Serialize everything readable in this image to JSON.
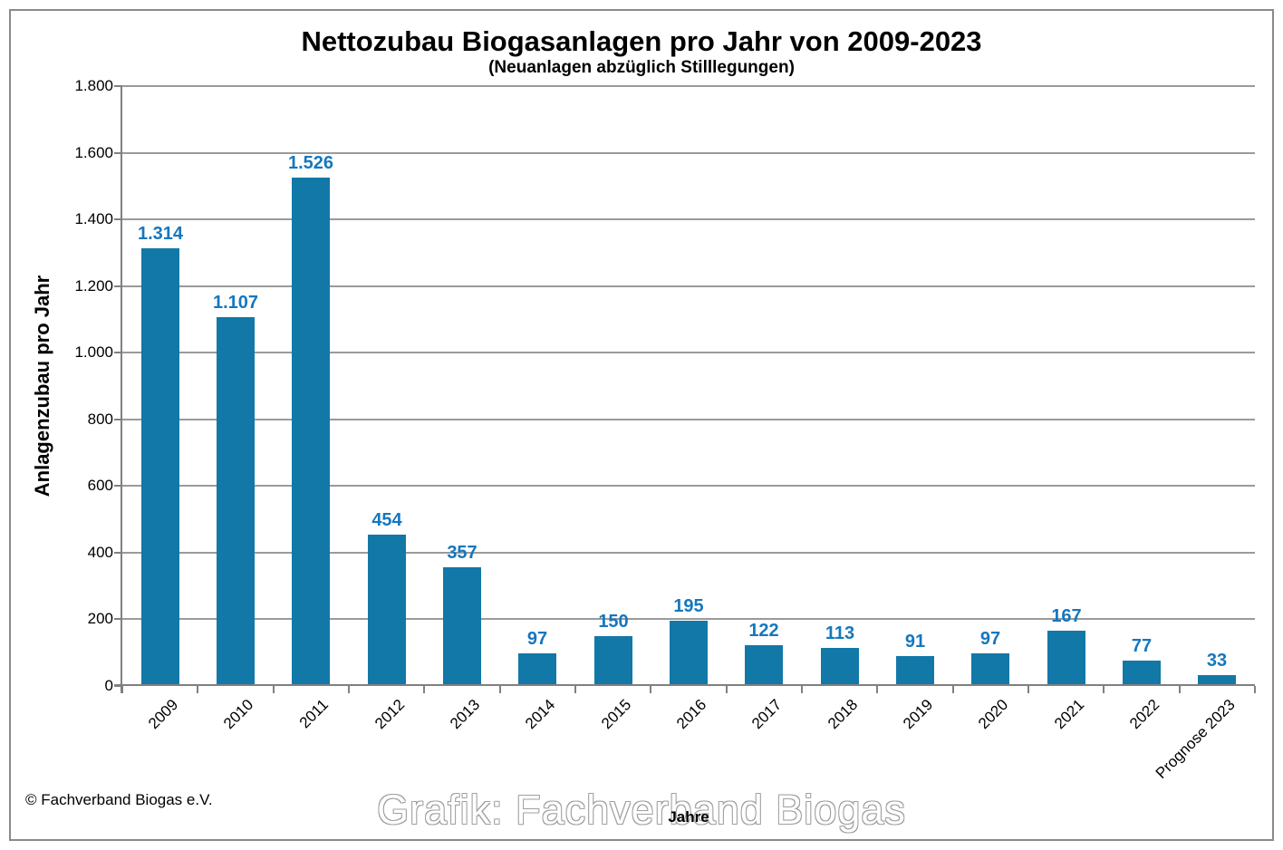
{
  "chart_data": {
    "type": "bar",
    "title": "Nettozubau Biogasanlagen pro Jahr von 2009-2023",
    "subtitle": "(Neuanlagen abzüglich Stilllegungen)",
    "xlabel": "Jahre",
    "ylabel": "Anlagenzubau pro Jahr",
    "categories": [
      "2009",
      "2010",
      "2011",
      "2012",
      "2013",
      "2014",
      "2015",
      "2016",
      "2017",
      "2018",
      "2019",
      "2020",
      "2021",
      "2022",
      "Prognose 2023"
    ],
    "values": [
      1314,
      1107,
      1526,
      454,
      357,
      97,
      150,
      195,
      122,
      113,
      91,
      97,
      167,
      77,
      33
    ],
    "value_labels": [
      "1.314",
      "1.107",
      "1.526",
      "454",
      "357",
      "97",
      "150",
      "195",
      "122",
      "113",
      "91",
      "97",
      "167",
      "77",
      "33"
    ],
    "ylim": [
      0,
      1800
    ],
    "ytick_step": 200,
    "ytick_labels": [
      "0",
      "200",
      "400",
      "600",
      "800",
      "1.000",
      "1.200",
      "1.400",
      "1.600",
      "1.800"
    ],
    "grid": "horizontal",
    "legend": "none",
    "colors": {
      "bar": "#1278A8",
      "value_label": "#1577BE",
      "gridline": "#9A9A9A",
      "axis": "#808080"
    }
  },
  "footer": {
    "copyright": "© Fachverband Biogas e.V.",
    "watermark": "Grafik: Fachverband Biogas"
  }
}
